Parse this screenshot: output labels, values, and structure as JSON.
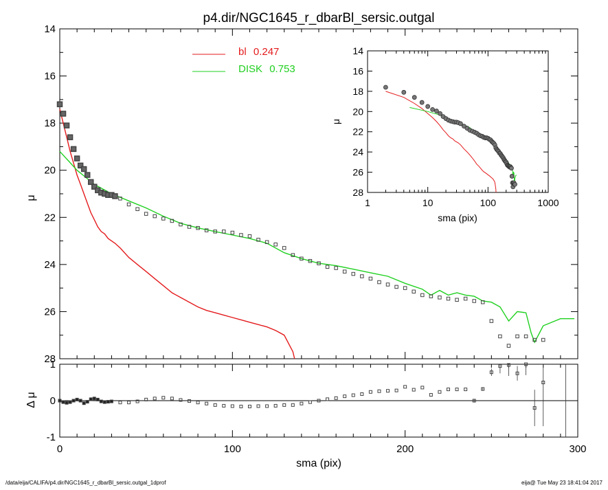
{
  "title": "p4.dir/NGC1645_r_dbarBl_sersic.outgal",
  "footer_left": "/data/eija/CALIFA/p4.dir/NGC1645_r_dbarBl_sersic.outgal_1dprof",
  "footer_right": "eija@  Tue May 23 18:41:04 2017",
  "colors": {
    "bl": "#e41a1c",
    "disk": "#1fd01f",
    "data": "#444444",
    "axes": "#000000"
  },
  "chart_data": [
    {
      "id": "main",
      "type": "scatter",
      "xlabel": "",
      "ylabel": "μ",
      "xlim": [
        0,
        300
      ],
      "ylim": [
        28,
        14
      ],
      "yticks": [
        "14",
        "16",
        "18",
        "20",
        "22",
        "24",
        "26",
        "28"
      ],
      "legend": {
        "placement": "top-left",
        "entries": [
          {
            "label": "bl",
            "value": "0.247",
            "color": "#e41a1c"
          },
          {
            "label": "DISK",
            "value": "0.753",
            "color": "#1fd01f"
          }
        ]
      },
      "series": [
        {
          "name": "bl",
          "kind": "line",
          "color": "#e41a1c",
          "x": [
            0,
            2,
            4,
            6,
            8,
            10,
            12,
            14,
            16,
            18,
            20,
            22,
            24,
            26,
            28,
            30,
            32,
            35,
            40,
            45,
            50,
            55,
            60,
            65,
            70,
            75,
            80,
            85,
            90,
            95,
            100,
            105,
            110,
            115,
            120,
            125,
            130,
            135,
            136
          ],
          "y": [
            17.4,
            18.0,
            18.6,
            19.2,
            19.7,
            20.2,
            20.6,
            21.0,
            21.4,
            21.8,
            22.1,
            22.4,
            22.6,
            22.7,
            22.9,
            23.0,
            23.1,
            23.3,
            23.7,
            24.0,
            24.3,
            24.6,
            24.9,
            25.2,
            25.4,
            25.6,
            25.8,
            25.95,
            26.05,
            26.15,
            26.25,
            26.35,
            26.45,
            26.55,
            26.65,
            26.8,
            27.0,
            27.7,
            28.0
          ]
        },
        {
          "name": "DISK",
          "kind": "line",
          "color": "#1fd01f",
          "x": [
            0,
            5,
            10,
            15,
            20,
            25,
            30,
            35,
            40,
            50,
            60,
            70,
            80,
            90,
            100,
            110,
            120,
            130,
            140,
            150,
            160,
            170,
            180,
            190,
            200,
            210,
            215,
            220,
            225,
            230,
            235,
            240,
            245,
            250,
            255,
            260,
            265,
            270,
            273,
            275,
            280,
            290,
            295,
            298
          ],
          "y": [
            19.2,
            19.6,
            20.0,
            20.3,
            20.6,
            20.8,
            21.0,
            21.15,
            21.3,
            21.6,
            21.95,
            22.25,
            22.45,
            22.6,
            22.75,
            22.9,
            23.1,
            23.5,
            23.75,
            23.95,
            24.05,
            24.2,
            24.35,
            24.5,
            24.8,
            25.05,
            25.3,
            25.1,
            25.3,
            25.2,
            25.3,
            25.35,
            25.55,
            25.6,
            25.8,
            26.4,
            26.0,
            26.05,
            26.9,
            27.3,
            26.6,
            26.3,
            26.3,
            26.3
          ]
        },
        {
          "name": "data",
          "kind": "points",
          "color": "#444444",
          "x": [
            0,
            2,
            4,
            6,
            8,
            10,
            12,
            14,
            16,
            18,
            20,
            22,
            24,
            26,
            28,
            30,
            32,
            35,
            40,
            45,
            50,
            55,
            60,
            65,
            70,
            75,
            80,
            85,
            90,
            95,
            100,
            105,
            110,
            115,
            120,
            125,
            130,
            135,
            140,
            145,
            150,
            155,
            160,
            165,
            170,
            175,
            180,
            185,
            190,
            195,
            200,
            205,
            210,
            215,
            220,
            225,
            230,
            235,
            240,
            245,
            250,
            255,
            260,
            265,
            270,
            275,
            280
          ],
          "y": [
            17.2,
            17.6,
            18.1,
            18.6,
            19.1,
            19.5,
            19.8,
            19.95,
            20.2,
            20.5,
            20.7,
            20.85,
            20.95,
            21.0,
            21.05,
            21.05,
            21.1,
            21.2,
            21.45,
            21.65,
            21.85,
            21.95,
            22.05,
            22.15,
            22.3,
            22.4,
            22.45,
            22.55,
            22.6,
            22.6,
            22.65,
            22.75,
            22.8,
            22.95,
            23.05,
            23.15,
            23.3,
            23.6,
            23.75,
            23.85,
            23.95,
            24.1,
            24.15,
            24.3,
            24.4,
            24.5,
            24.6,
            24.75,
            24.85,
            24.95,
            25.0,
            25.15,
            25.3,
            25.35,
            25.4,
            25.45,
            25.5,
            25.45,
            25.55,
            25.6,
            26.4,
            27.05,
            27.45,
            27.05,
            27.05,
            27.2,
            27.2
          ]
        }
      ]
    },
    {
      "id": "residual",
      "type": "scatter",
      "xlabel": "sma (pix)",
      "ylabel": "Δ μ",
      "xlim": [
        0,
        300
      ],
      "ylim": [
        -1,
        1
      ],
      "xticks": [
        "0",
        "100",
        "200",
        "300"
      ],
      "yticks": [
        "1",
        "0",
        "-1"
      ],
      "series": [
        {
          "name": "residual",
          "kind": "points",
          "color": "#444444",
          "x": [
            0,
            2,
            4,
            6,
            8,
            10,
            12,
            14,
            16,
            18,
            20,
            22,
            24,
            26,
            28,
            30,
            35,
            40,
            45,
            50,
            55,
            60,
            65,
            70,
            75,
            80,
            85,
            90,
            95,
            100,
            105,
            110,
            115,
            120,
            125,
            130,
            135,
            140,
            145,
            150,
            155,
            160,
            165,
            170,
            175,
            180,
            185,
            190,
            195,
            200,
            205,
            210,
            215,
            220,
            225,
            230,
            235,
            240,
            245,
            250,
            255,
            260,
            265,
            270,
            275,
            280
          ],
          "y": [
            0,
            -0.04,
            -0.06,
            -0.04,
            0.0,
            0.03,
            0.0,
            -0.07,
            -0.03,
            0.04,
            0.06,
            0.03,
            -0.02,
            -0.04,
            -0.03,
            -0.02,
            -0.05,
            -0.05,
            -0.02,
            0.03,
            0.06,
            0.08,
            0.06,
            0.02,
            -0.01,
            -0.05,
            -0.08,
            -0.12,
            -0.14,
            -0.15,
            -0.16,
            -0.16,
            -0.15,
            -0.15,
            -0.14,
            -0.12,
            -0.12,
            -0.08,
            -0.04,
            0.0,
            0.04,
            0.07,
            0.12,
            0.15,
            0.18,
            0.24,
            0.26,
            0.27,
            0.28,
            0.38,
            0.3,
            0.36,
            0.16,
            0.24,
            0.31,
            0.31,
            0.31,
            0.0,
            0.32,
            0.78,
            0.95,
            0.98,
            0.75,
            1.0,
            -0.2,
            0.5
          ],
          "err": [
            0,
            0,
            0,
            0,
            0,
            0,
            0,
            0,
            0,
            0,
            0,
            0,
            0,
            0,
            0,
            0,
            0,
            0,
            0,
            0,
            0,
            0,
            0,
            0,
            0,
            0,
            0,
            0,
            0,
            0,
            0,
            0,
            0,
            0,
            0,
            0,
            0,
            0,
            0,
            0,
            0,
            0,
            0,
            0,
            0,
            0,
            0,
            0,
            0,
            0,
            0,
            0,
            0,
            0,
            0,
            0,
            0,
            0.05,
            0.05,
            0.1,
            0.2,
            0.3,
            0.2,
            0.3,
            0.5,
            1.2
          ]
        },
        {
          "name": "zero",
          "kind": "reference",
          "y": [
            0
          ]
        }
      ]
    },
    {
      "id": "inset",
      "type": "scatter",
      "xlabel": "sma (pix)",
      "ylabel": "μ",
      "xscale": "log",
      "xlim": [
        1,
        1000
      ],
      "ylim": [
        28,
        14
      ],
      "xticks": [
        "1",
        "10",
        "100",
        "1000"
      ],
      "yticks": [
        "14",
        "16",
        "18",
        "20",
        "22",
        "24",
        "26",
        "28"
      ]
    }
  ]
}
